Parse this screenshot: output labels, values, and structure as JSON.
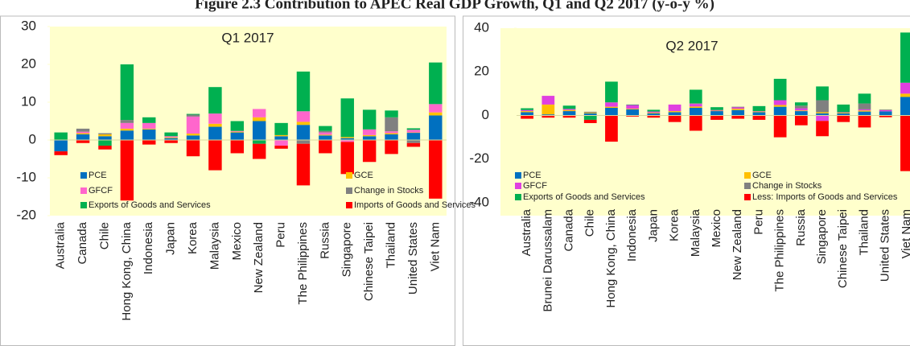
{
  "title": "Figure 2.3 Contribution to APEC Real GDP Growth, Q1 and Q2 2017 (y-o-y %)",
  "chart_data": [
    {
      "type": "bar",
      "stacked": true,
      "title": "Q1 2017",
      "categories": [
        "Australia",
        "Canada",
        "Chile",
        "Hong Kong, China",
        "Indonesia",
        "Japan",
        "Korea",
        "Malaysia",
        "Mexico",
        "New Zealand",
        "Peru",
        "The Philippines",
        "Russia",
        "Singapore",
        "Chinese Taipei",
        "Thailand",
        "United States",
        "Viet Nam"
      ],
      "series": [
        {
          "name": "PCE",
          "color": "#0070c0",
          "values": [
            -3.0,
            1.5,
            1.0,
            2.5,
            2.8,
            0.5,
            1.2,
            3.5,
            2.0,
            5.0,
            1.0,
            4.0,
            1.2,
            0.5,
            1.0,
            1.5,
            1.9,
            6.5
          ]
        },
        {
          "name": "GCE",
          "color": "#ffc000",
          "values": [
            0,
            0.3,
            0.5,
            0.5,
            0.2,
            0.2,
            0.5,
            0.8,
            0.2,
            1.0,
            0.3,
            0.8,
            0.2,
            0.3,
            0.3,
            0.3,
            0.1,
            0.8
          ]
        },
        {
          "name": "GFCF",
          "color": "#ff66cc",
          "values": [
            0,
            0.4,
            0,
            1.5,
            1.5,
            0.3,
            4.5,
            2.7,
            0.2,
            2.2,
            -1.5,
            2.8,
            0.6,
            -0.5,
            1.5,
            0.5,
            0.7,
            2.2
          ]
        },
        {
          "name": "Change in Stocks",
          "color": "#808080",
          "values": [
            0,
            0.8,
            0.3,
            0.8,
            0,
            0,
            0.5,
            0,
            0,
            0,
            0,
            -1.0,
            0.4,
            0,
            0,
            3.7,
            -0.8,
            0
          ]
        },
        {
          "name": "Exports of Goods and Services",
          "color": "#00b050",
          "values": [
            2.0,
            0,
            -1.5,
            14.7,
            1.5,
            1.0,
            0.2,
            7.0,
            2.6,
            -1.0,
            3.2,
            10.5,
            1.3,
            10.2,
            5.2,
            1.8,
            0.4,
            11.0
          ]
        },
        {
          "name": "Imports of Goods and Services",
          "color": "#ff0000",
          "values": [
            -1.0,
            -0.8,
            -1.0,
            -16.0,
            -1.2,
            -0.8,
            -4.3,
            -8.0,
            -3.5,
            -4.0,
            -0.8,
            -11.0,
            -3.5,
            -8.5,
            -5.8,
            -3.7,
            -1.0,
            -15.5
          ]
        }
      ],
      "ylim": [
        -20,
        30
      ],
      "yticks": [
        -20,
        -10,
        0,
        10,
        20,
        30
      ]
    },
    {
      "type": "bar",
      "stacked": true,
      "title": "Q2 2017",
      "categories": [
        "Australia",
        "Brunei Darussalam",
        "Canada",
        "Chile",
        "Hong Kong, China",
        "Indonesia",
        "Japan",
        "Korea",
        "Malaysia",
        "Mexico",
        "New Zealand",
        "Peru",
        "The Philippines",
        "Russia",
        "Singapore",
        "Chinese Taipei",
        "Thailand",
        "United States",
        "Viet Nam"
      ],
      "series": [
        {
          "name": "PCE",
          "color": "#0070c0",
          "values": [
            1.5,
            0.5,
            2.0,
            1.0,
            3.5,
            2.8,
            1.0,
            1.5,
            3.5,
            2.0,
            2.5,
            1.5,
            4.0,
            2.0,
            1.0,
            1.0,
            1.8,
            1.9,
            8.5
          ]
        },
        {
          "name": "GCE",
          "color": "#ffc000",
          "values": [
            0.5,
            4.5,
            0.5,
            0.3,
            0.5,
            0.3,
            0.3,
            0.5,
            0.6,
            0.2,
            0.6,
            0.3,
            0.8,
            0.3,
            0.5,
            0.3,
            0.5,
            0,
            1.5
          ]
        },
        {
          "name": "GFCF",
          "color": "#e040e0",
          "values": [
            0.5,
            4.0,
            0.5,
            0,
            2.0,
            1.7,
            0.5,
            3.0,
            1.2,
            0.3,
            0.6,
            0.2,
            2.2,
            1.0,
            -2.5,
            0.2,
            0.5,
            0.5,
            5.0
          ]
        },
        {
          "name": "Change in Stocks",
          "color": "#808080",
          "values": [
            0,
            0,
            0,
            0.4,
            0,
            0,
            0,
            0,
            0.3,
            0,
            0.3,
            0,
            0,
            1.2,
            5.5,
            0,
            2.7,
            0.3,
            0
          ]
        },
        {
          "name": "Exports of Goods  and Services",
          "color": "#00b050",
          "values": [
            0.8,
            0,
            1.5,
            -2.0,
            9.5,
            0.2,
            0.8,
            0,
            6.2,
            1.3,
            0,
            2.3,
            9.8,
            1.5,
            6.3,
            3.5,
            4.5,
            0,
            23.0
          ]
        },
        {
          "name": "Less: Imports of Goods  and Services",
          "color": "#ff0000",
          "values": [
            -1.5,
            -1.0,
            -1.0,
            -1.5,
            -12.0,
            -0.5,
            -1.0,
            -3.0,
            -7.0,
            -2.0,
            -1.5,
            -2.0,
            -10.0,
            -4.5,
            -7.0,
            -3.0,
            -5.5,
            -0.8,
            -25.5
          ]
        }
      ],
      "ylim": [
        -40,
        40
      ],
      "yticks": [
        -40,
        -20,
        0,
        20,
        40
      ]
    }
  ]
}
